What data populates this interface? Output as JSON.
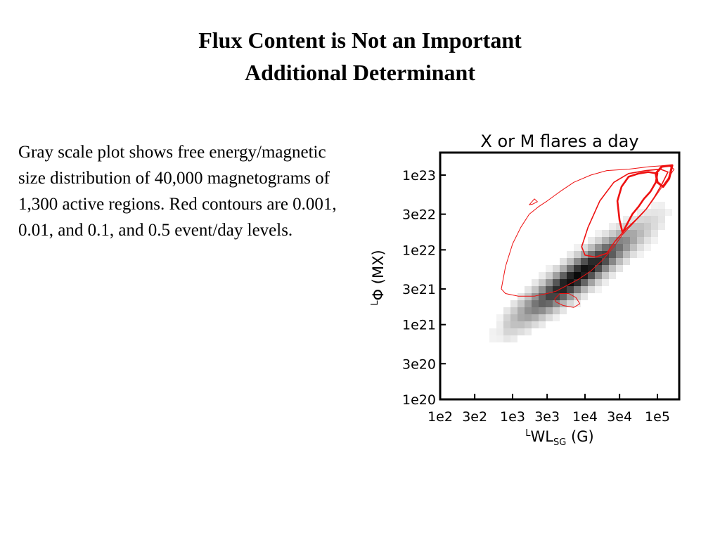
{
  "slide": {
    "title_line1": "Flux Content is Not an Important",
    "title_line2": "Additional Determinant",
    "body": " Gray scale plot shows free energy/magnetic size distribution of 40,000 magnetograms of 1,300 active regions.  Red contours are 0.001, 0.01, and 0.1, and 0.5 event/day levels."
  },
  "chart_data": {
    "type": "heatmap",
    "title": "X or M flares a day",
    "xlabel_prefix": "L",
    "xlabel_main": "WL",
    "xlabel_sub": "SG",
    "xlabel_unit": " (G)",
    "ylabel_prefix": "L",
    "ylabel_main": "Φ",
    "ylabel_unit": " (MX)",
    "x_scale": "log",
    "y_scale": "log",
    "xlim": [
      100,
      200000
    ],
    "ylim": [
      1e+20,
      2e+23
    ],
    "x_ticks": [
      {
        "value": 100,
        "label": "1e2"
      },
      {
        "value": 300,
        "label": "3e2"
      },
      {
        "value": 1000,
        "label": "1e3"
      },
      {
        "value": 3000,
        "label": "3e3"
      },
      {
        "value": 10000,
        "label": "1e4"
      },
      {
        "value": 30000,
        "label": "3e4"
      },
      {
        "value": 100000,
        "label": "1e5"
      }
    ],
    "y_ticks": [
      {
        "value": 1e+20,
        "label": "1e20"
      },
      {
        "value": 3e+20,
        "label": "3e20"
      },
      {
        "value": 1e+21,
        "label": "1e21"
      },
      {
        "value": 3e+21,
        "label": "3e21"
      },
      {
        "value": 1e+22,
        "label": "1e22"
      },
      {
        "value": 3e+22,
        "label": "3e22"
      },
      {
        "value": 1e+23,
        "label": "1e23"
      }
    ],
    "density_color": "#000000",
    "contour_color": "#ee1111",
    "contour_levels": [
      0.001,
      0.01,
      0.1,
      0.5
    ],
    "contours": [
      {
        "level": 0.001,
        "points": [
          [
            700,
            3e+21
          ],
          [
            800,
            6e+21
          ],
          [
            1000,
            1.2e+22
          ],
          [
            1300,
            2e+22
          ],
          [
            1700,
            3e+22
          ],
          [
            2300,
            3.8e+22
          ],
          [
            3000,
            4.5e+22
          ],
          [
            4500,
            6e+22
          ],
          [
            7000,
            8e+22
          ],
          [
            12000,
            1e+23
          ],
          [
            20000,
            1.15e+23
          ],
          [
            40000,
            1.2e+23
          ],
          [
            80000,
            1.3e+23
          ],
          [
            140000,
            1.35e+23
          ],
          [
            170000,
            1.2e+23
          ],
          [
            140000,
            9e+22
          ],
          [
            110000,
            6.5e+22
          ],
          [
            85000,
            4.5e+22
          ],
          [
            65000,
            3.2e+22
          ],
          [
            45000,
            2.2e+22
          ],
          [
            33000,
            1.6e+22
          ],
          [
            25000,
            1.1e+22
          ],
          [
            18000,
            7.5e+21
          ],
          [
            12000,
            5.2e+21
          ],
          [
            8000,
            4e+21
          ],
          [
            5500,
            3.3e+21
          ],
          [
            4000,
            2.8e+21
          ],
          [
            3000,
            2.6e+21
          ],
          [
            2000,
            2.4e+21
          ],
          [
            1200,
            2.4e+21
          ],
          [
            800,
            2.6e+21
          ]
        ]
      },
      {
        "level": 0.01,
        "points": [
          [
            9000,
            1.1e+22
          ],
          [
            11000,
            2e+22
          ],
          [
            16000,
            4.5e+22
          ],
          [
            25000,
            8e+22
          ],
          [
            40000,
            1.05e+23
          ],
          [
            70000,
            1.15e+23
          ],
          [
            110000,
            1.2e+23
          ],
          [
            140000,
            1.1e+23
          ],
          [
            115000,
            7.5e+22
          ],
          [
            90000,
            5e+22
          ],
          [
            70000,
            3.5e+22
          ],
          [
            50000,
            2.5e+22
          ],
          [
            35000,
            1.8e+22
          ],
          [
            26000,
            1.3e+22
          ],
          [
            20000,
            9e+21
          ],
          [
            14000,
            8e+21
          ],
          [
            10000,
            8.5e+21
          ]
        ]
      },
      {
        "level": 0.1,
        "points": [
          [
            28000,
            4.5e+22
          ],
          [
            32000,
            7e+22
          ],
          [
            40000,
            9.5e+22
          ],
          [
            55000,
            1.05e+23
          ],
          [
            75000,
            1.1e+23
          ],
          [
            100000,
            1.05e+23
          ],
          [
            95000,
            8e+22
          ],
          [
            80000,
            6e+22
          ],
          [
            65000,
            4.8e+22
          ],
          [
            55000,
            3.8e+22
          ],
          [
            45000,
            3e+22
          ],
          [
            38000,
            2.2e+22
          ],
          [
            33000,
            1.7e+22
          ],
          [
            30000,
            2.5e+22
          ]
        ]
      },
      {
        "level": 0.5,
        "points": [
          [
            95000,
            1.05e+23
          ],
          [
            115000,
            1.3e+23
          ],
          [
            160000,
            1.35e+23
          ],
          [
            145000,
            9e+22
          ],
          [
            120000,
            7e+22
          ],
          [
            100000,
            8e+22
          ]
        ]
      },
      {
        "level": 0.001,
        "points": [
          [
            3800,
            2.2e+21
          ],
          [
            4500,
            2.6e+21
          ],
          [
            6000,
            2.6e+21
          ],
          [
            7500,
            2.3e+21
          ],
          [
            8500,
            1.9e+21
          ],
          [
            7000,
            1.7e+21
          ],
          [
            5000,
            1.8e+21
          ],
          [
            4000,
            2e+21
          ]
        ]
      },
      {
        "level": 0.001,
        "points": [
          [
            1700,
            4e+22
          ],
          [
            2000,
            4.8e+22
          ],
          [
            2200,
            4.4e+22
          ],
          [
            1900,
            4.1e+22
          ]
        ]
      }
    ]
  }
}
